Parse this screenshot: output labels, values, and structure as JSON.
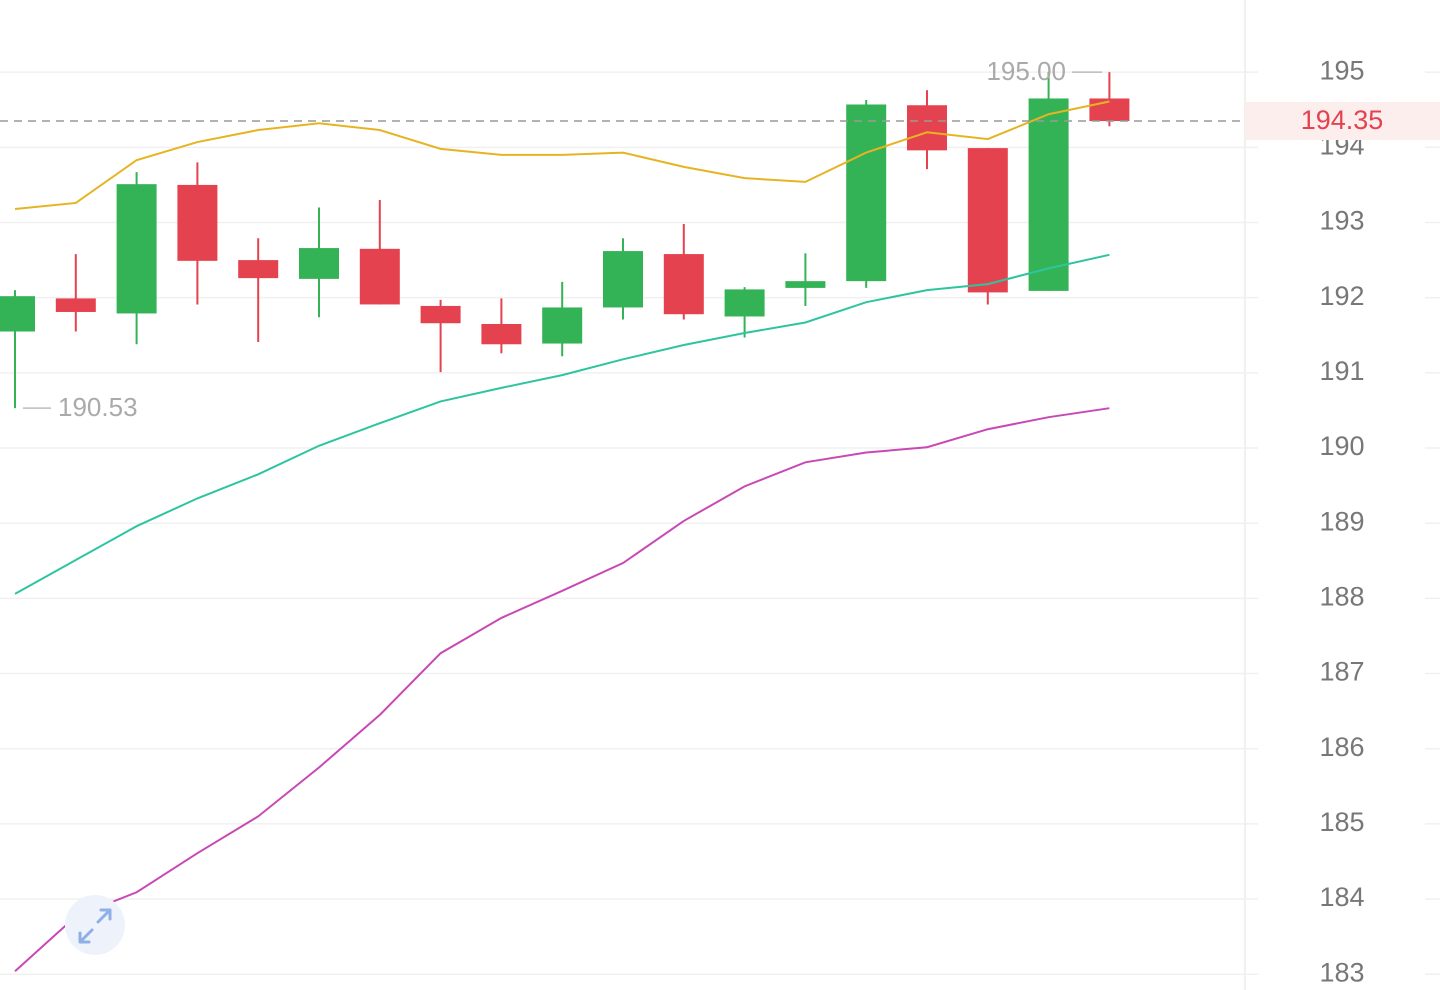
{
  "chart_data": {
    "type": "candlestick",
    "ylim": [
      182.79,
      195.96
    ],
    "yticks": [
      183,
      184,
      185,
      186,
      187,
      188,
      189,
      190,
      191,
      192,
      193,
      194,
      195
    ],
    "grid": true,
    "up_color": "#34b356",
    "down_color": "#e5424f",
    "open": [
      191.55,
      191.99,
      191.79,
      193.5,
      192.5,
      192.25,
      192.65,
      191.89,
      191.65,
      191.39,
      191.87,
      192.58,
      191.75,
      192.13,
      192.22,
      194.56,
      193.99,
      192.09,
      194.65
    ],
    "high": [
      192.1,
      192.58,
      193.67,
      193.8,
      192.79,
      193.2,
      193.3,
      191.97,
      191.99,
      192.21,
      192.79,
      192.98,
      192.14,
      192.59,
      194.63,
      194.76,
      193.99,
      195.0,
      195.0
    ],
    "low": [
      190.53,
      191.55,
      191.38,
      191.91,
      191.41,
      191.74,
      191.91,
      191.01,
      191.26,
      191.22,
      191.71,
      191.71,
      191.47,
      191.89,
      192.13,
      193.71,
      191.91,
      192.09,
      194.28
    ],
    "close": [
      192.02,
      191.81,
      193.51,
      192.49,
      192.26,
      192.66,
      191.91,
      191.66,
      191.38,
      191.87,
      192.62,
      191.78,
      192.11,
      192.22,
      194.57,
      193.96,
      192.07,
      194.65,
      194.35
    ],
    "series": [
      {
        "color": "#e6b422",
        "values": [
          193.18,
          193.26,
          193.83,
          194.07,
          194.23,
          194.32,
          194.23,
          193.98,
          193.9,
          193.9,
          193.93,
          193.74,
          193.59,
          193.54,
          193.93,
          194.2,
          194.11,
          194.44,
          194.61
        ]
      },
      {
        "color": "#2ec4a0",
        "values": [
          188.06,
          188.51,
          188.96,
          189.33,
          189.65,
          190.03,
          190.33,
          190.62,
          190.8,
          190.97,
          191.18,
          191.37,
          191.53,
          191.67,
          191.94,
          192.1,
          192.18,
          192.39,
          192.57
        ]
      },
      {
        "color": "#c849b5",
        "values": [
          183.04,
          183.77,
          184.09,
          184.61,
          185.1,
          185.75,
          186.45,
          187.27,
          187.74,
          188.1,
          188.47,
          189.03,
          189.49,
          189.81,
          189.94,
          190.01,
          190.25,
          190.41,
          190.53
        ]
      }
    ],
    "max_label": {
      "value": 195.0,
      "label": "195.00"
    },
    "min_label": 190.53,
    "last_price": 194.35,
    "last_price_color": "#e5424f"
  }
}
